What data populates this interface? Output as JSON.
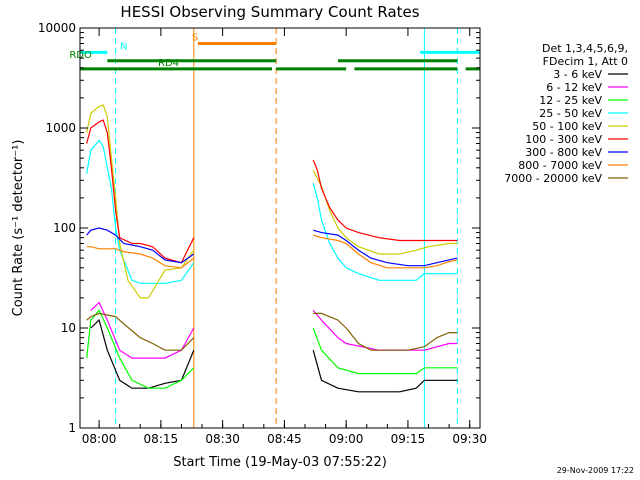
{
  "chart_data": {
    "type": "line",
    "title": "HESSI Observing Summary Count Rates",
    "xlabel": "Start Time (19-May-03 07:55:22)",
    "ylabel": "Count Rate (s⁻¹ detector⁻¹)",
    "y_scale": "log",
    "ylim": [
      1,
      10000
    ],
    "xlim": [
      "07:55:22",
      "09:32:30"
    ],
    "x_tick_labels": [
      "08:00",
      "08:15",
      "08:30",
      "08:45",
      "09:00",
      "09:15",
      "09:30"
    ],
    "y_tick_labels": [
      "1",
      "10",
      "100",
      "1000",
      "10000"
    ],
    "legend_header": [
      "Det 1,3,4,5,6,9,",
      "FDecim 1, Att 0"
    ],
    "series": [
      {
        "name": "3 - 6 keV",
        "color": "#000000",
        "points": [
          [
            "07:58",
            10
          ],
          [
            "08:00",
            12
          ],
          [
            "08:02",
            6
          ],
          [
            "08:05",
            3
          ],
          [
            "08:08",
            2.5
          ],
          [
            "08:12",
            2.5
          ],
          [
            "08:16",
            2.8
          ],
          [
            "08:20",
            3
          ],
          [
            "08:23",
            6
          ],
          [
            "08:52",
            6
          ],
          [
            "08:54",
            3
          ],
          [
            "08:58",
            2.5
          ],
          [
            "09:03",
            2.3
          ],
          [
            "09:08",
            2.3
          ],
          [
            "09:13",
            2.3
          ],
          [
            "09:17",
            2.5
          ],
          [
            "09:19",
            3
          ],
          [
            "09:25",
            3
          ],
          [
            "09:27",
            3
          ]
        ]
      },
      {
        "name": "6 - 12 keV",
        "color": "#ff00ff",
        "points": [
          [
            "07:58",
            15
          ],
          [
            "08:00",
            18
          ],
          [
            "08:02",
            12
          ],
          [
            "08:05",
            6
          ],
          [
            "08:08",
            5
          ],
          [
            "08:12",
            5
          ],
          [
            "08:16",
            5
          ],
          [
            "08:20",
            6
          ],
          [
            "08:23",
            10
          ],
          [
            "08:52",
            15
          ],
          [
            "08:54",
            12
          ],
          [
            "08:58",
            8
          ],
          [
            "09:00",
            7
          ],
          [
            "09:08",
            6
          ],
          [
            "09:15",
            6
          ],
          [
            "09:19",
            6
          ],
          [
            "09:25",
            7
          ],
          [
            "09:27",
            7
          ]
        ]
      },
      {
        "name": "12 - 25 keV",
        "color": "#00ff00",
        "points": [
          [
            "07:57",
            5
          ],
          [
            "07:58",
            12
          ],
          [
            "08:00",
            15
          ],
          [
            "08:02",
            10
          ],
          [
            "08:05",
            5
          ],
          [
            "08:08",
            3
          ],
          [
            "08:12",
            2.5
          ],
          [
            "08:16",
            2.5
          ],
          [
            "08:20",
            3
          ],
          [
            "08:23",
            4
          ],
          [
            "08:52",
            10
          ],
          [
            "08:54",
            6
          ],
          [
            "08:58",
            4
          ],
          [
            "09:03",
            3.5
          ],
          [
            "09:08",
            3.5
          ],
          [
            "09:13",
            3.5
          ],
          [
            "09:17",
            3.5
          ],
          [
            "09:19",
            4
          ],
          [
            "09:25",
            4
          ],
          [
            "09:27",
            4
          ]
        ]
      },
      {
        "name": "25 - 50 keV",
        "color": "#00ffff",
        "points": [
          [
            "07:57",
            350
          ],
          [
            "07:58",
            600
          ],
          [
            "08:00",
            750
          ],
          [
            "08:01",
            650
          ],
          [
            "08:03",
            250
          ],
          [
            "08:04",
            100
          ],
          [
            "08:05",
            60
          ],
          [
            "08:08",
            30
          ],
          [
            "08:10",
            28
          ],
          [
            "08:12",
            28
          ],
          [
            "08:16",
            28
          ],
          [
            "08:20",
            30
          ],
          [
            "08:23",
            45
          ],
          [
            "08:52",
            280
          ],
          [
            "08:53",
            200
          ],
          [
            "08:54",
            120
          ],
          [
            "08:56",
            70
          ],
          [
            "08:58",
            50
          ],
          [
            "09:00",
            40
          ],
          [
            "09:03",
            35
          ],
          [
            "09:08",
            30
          ],
          [
            "09:13",
            30
          ],
          [
            "09:17",
            30
          ],
          [
            "09:19",
            35
          ],
          [
            "09:25",
            35
          ],
          [
            "09:27",
            35
          ]
        ]
      },
      {
        "name": "50 - 100 keV",
        "color": "#cccc00",
        "points": [
          [
            "07:57",
            900
          ],
          [
            "07:58",
            1400
          ],
          [
            "08:00",
            1650
          ],
          [
            "08:01",
            1700
          ],
          [
            "08:02",
            1300
          ],
          [
            "08:03",
            500
          ],
          [
            "08:04",
            200
          ],
          [
            "08:05",
            70
          ],
          [
            "08:07",
            30
          ],
          [
            "08:10",
            20
          ],
          [
            "08:12",
            20
          ],
          [
            "08:16",
            38
          ],
          [
            "08:20",
            40
          ],
          [
            "08:23",
            60
          ],
          [
            "08:52",
            380
          ],
          [
            "08:54",
            260
          ],
          [
            "08:56",
            150
          ],
          [
            "08:58",
            100
          ],
          [
            "09:00",
            80
          ],
          [
            "09:03",
            65
          ],
          [
            "09:08",
            55
          ],
          [
            "09:13",
            55
          ],
          [
            "09:17",
            60
          ],
          [
            "09:20",
            65
          ],
          [
            "09:25",
            70
          ],
          [
            "09:27",
            70
          ]
        ]
      },
      {
        "name": "100 - 300 keV",
        "color": "#ff0000",
        "points": [
          [
            "07:57",
            700
          ],
          [
            "07:58",
            1000
          ],
          [
            "08:00",
            1150
          ],
          [
            "08:01",
            1200
          ],
          [
            "08:02",
            900
          ],
          [
            "08:03",
            400
          ],
          [
            "08:04",
            150
          ],
          [
            "08:05",
            80
          ],
          [
            "08:08",
            70
          ],
          [
            "08:10",
            70
          ],
          [
            "08:13",
            65
          ],
          [
            "08:16",
            50
          ],
          [
            "08:20",
            45
          ],
          [
            "08:23",
            80
          ],
          [
            "08:52",
            480
          ],
          [
            "08:53",
            380
          ],
          [
            "08:54",
            250
          ],
          [
            "08:56",
            160
          ],
          [
            "08:58",
            120
          ],
          [
            "09:00",
            100
          ],
          [
            "09:03",
            90
          ],
          [
            "09:08",
            80
          ],
          [
            "09:13",
            75
          ],
          [
            "09:17",
            75
          ],
          [
            "09:20",
            75
          ],
          [
            "09:25",
            75
          ],
          [
            "09:27",
            75
          ]
        ]
      },
      {
        "name": "300 - 800 keV",
        "color": "#0000ff",
        "points": [
          [
            "07:57",
            85
          ],
          [
            "07:58",
            95
          ],
          [
            "08:00",
            100
          ],
          [
            "08:02",
            95
          ],
          [
            "08:04",
            85
          ],
          [
            "08:06",
            70
          ],
          [
            "08:10",
            65
          ],
          [
            "08:13",
            60
          ],
          [
            "08:16",
            48
          ],
          [
            "08:20",
            45
          ],
          [
            "08:23",
            55
          ],
          [
            "08:52",
            95
          ],
          [
            "08:54",
            90
          ],
          [
            "08:58",
            85
          ],
          [
            "09:00",
            75
          ],
          [
            "09:03",
            60
          ],
          [
            "09:06",
            50
          ],
          [
            "09:10",
            45
          ],
          [
            "09:15",
            42
          ],
          [
            "09:19",
            42
          ],
          [
            "09:22",
            45
          ],
          [
            "09:25",
            48
          ],
          [
            "09:27",
            50
          ]
        ]
      },
      {
        "name": "800 - 7000 keV",
        "color": "#ff8000",
        "points": [
          [
            "07:57",
            65
          ],
          [
            "07:58",
            65
          ],
          [
            "08:00",
            62
          ],
          [
            "08:04",
            62
          ],
          [
            "08:06",
            58
          ],
          [
            "08:10",
            55
          ],
          [
            "08:13",
            50
          ],
          [
            "08:16",
            42
          ],
          [
            "08:20",
            40
          ],
          [
            "08:23",
            50
          ],
          [
            "08:52",
            85
          ],
          [
            "08:54",
            80
          ],
          [
            "08:58",
            75
          ],
          [
            "09:00",
            70
          ],
          [
            "09:03",
            55
          ],
          [
            "09:06",
            45
          ],
          [
            "09:10",
            40
          ],
          [
            "09:15",
            40
          ],
          [
            "09:19",
            40
          ],
          [
            "09:22",
            42
          ],
          [
            "09:25",
            46
          ],
          [
            "09:27",
            48
          ]
        ]
      },
      {
        "name": "7000 - 20000 keV",
        "color": "#806000",
        "points": [
          [
            "07:57",
            12
          ],
          [
            "07:58",
            13
          ],
          [
            "08:00",
            14
          ],
          [
            "08:04",
            13
          ],
          [
            "08:06",
            11
          ],
          [
            "08:10",
            8
          ],
          [
            "08:13",
            7
          ],
          [
            "08:16",
            6
          ],
          [
            "08:20",
            6
          ],
          [
            "08:23",
            8
          ],
          [
            "08:52",
            14
          ],
          [
            "08:54",
            14
          ],
          [
            "08:58",
            12
          ],
          [
            "09:00",
            10
          ],
          [
            "09:03",
            7
          ],
          [
            "09:06",
            6
          ],
          [
            "09:10",
            6
          ],
          [
            "09:15",
            6
          ],
          [
            "09:19",
            6.5
          ],
          [
            "09:22",
            8
          ],
          [
            "09:25",
            9
          ],
          [
            "09:27",
            9
          ]
        ]
      }
    ],
    "flag_bars": [
      {
        "label": "N",
        "color": "#00ffff",
        "level": 5700,
        "segments": [
          [
            "07:55:22",
            "08:02"
          ],
          [
            "09:18",
            "09:32:30"
          ]
        ]
      },
      {
        "label": "S",
        "color": "#ff8000",
        "level": 7000,
        "segments": [
          [
            "08:24",
            "08:43"
          ]
        ]
      },
      {
        "label": "RDO",
        "color": "#008000",
        "level": 4700,
        "segments": [
          [
            "08:02",
            "08:43"
          ],
          [
            "08:58",
            "09:27"
          ]
        ]
      },
      {
        "label": "RD4",
        "color": "#008000",
        "level": 3900,
        "segments": [
          [
            "07:55:22",
            "08:42"
          ],
          [
            "08:43",
            "09:00"
          ],
          [
            "09:02",
            "09:27"
          ],
          [
            "09:29",
            "09:32:30"
          ]
        ]
      }
    ],
    "vertical_markers": [
      {
        "time": "07:55:22",
        "color": "#00ffff",
        "style": "dashed"
      },
      {
        "time": "08:04",
        "color": "#00ffff",
        "style": "dashed"
      },
      {
        "time": "08:23",
        "color": "#ff8000",
        "style": "solid"
      },
      {
        "time": "08:43",
        "color": "#ff8000",
        "style": "dashed"
      },
      {
        "time": "09:19",
        "color": "#00ffff",
        "style": "solid"
      },
      {
        "time": "09:27",
        "color": "#00ffff",
        "style": "dashed"
      }
    ],
    "footer_date": "29-Nov-2009 17:22"
  }
}
